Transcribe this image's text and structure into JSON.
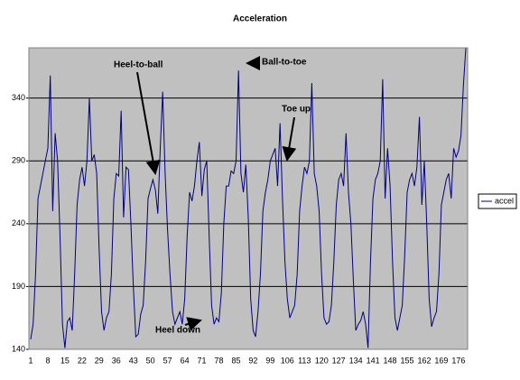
{
  "chart_data": {
    "type": "line",
    "title": "Acceleration",
    "categories": [
      1,
      null,
      null,
      null,
      null,
      null,
      null,
      8,
      null,
      null,
      null,
      null,
      null,
      null,
      15,
      null,
      null,
      null,
      null,
      null,
      null,
      22,
      null,
      null,
      null,
      null,
      null,
      null,
      29,
      null,
      null,
      null,
      null,
      null,
      null,
      36,
      null,
      null,
      null,
      null,
      null,
      null,
      43,
      null,
      null,
      null,
      null,
      null,
      null,
      50,
      null,
      null,
      null,
      null,
      null,
      null,
      57,
      null,
      null,
      null,
      null,
      null,
      null,
      64,
      null,
      null,
      null,
      null,
      null,
      null,
      71,
      null,
      null,
      null,
      null,
      null,
      null,
      78,
      null,
      null,
      null,
      null,
      null,
      null,
      85,
      null,
      null,
      null,
      null,
      null,
      null,
      92,
      null,
      null,
      null,
      null,
      null,
      null,
      99,
      null,
      null,
      null,
      null,
      null,
      null,
      106,
      null,
      null,
      null,
      null,
      null,
      null,
      113,
      null,
      null,
      null,
      null,
      null,
      null,
      120,
      null,
      null,
      null,
      null,
      null,
      null,
      127,
      null,
      null,
      null,
      null,
      null,
      null,
      134,
      null,
      null,
      null,
      null,
      null,
      null,
      141,
      null,
      null,
      null,
      null,
      null,
      null,
      148,
      null,
      null,
      null,
      null,
      null,
      null,
      155,
      null,
      null,
      null,
      null,
      null,
      null,
      162,
      null,
      null,
      null,
      null,
      null,
      null,
      169,
      null,
      null,
      null,
      null,
      null,
      null,
      176,
      null,
      null,
      null
    ],
    "series": [
      {
        "name": "accel",
        "color": "#000080",
        "values": [
          148,
          160,
          200,
          260,
          270,
          280,
          290,
          300,
          358,
          250,
          312,
          290,
          230,
          160,
          141,
          162,
          165,
          155,
          200,
          255,
          275,
          285,
          270,
          290,
          340,
          290,
          295,
          280,
          220,
          170,
          155,
          165,
          170,
          200,
          260,
          280,
          278,
          330,
          245,
          285,
          283,
          240,
          190,
          150,
          152,
          168,
          175,
          210,
          260,
          268,
          275,
          267,
          248,
          300,
          345,
          280,
          235,
          200,
          170,
          160,
          165,
          170,
          160,
          180,
          230,
          265,
          258,
          270,
          290,
          305,
          262,
          283,
          290,
          230,
          175,
          160,
          165,
          162,
          185,
          240,
          270,
          270,
          282,
          280,
          290,
          362,
          280,
          265,
          287,
          245,
          180,
          155,
          150,
          170,
          200,
          250,
          265,
          275,
          290,
          295,
          300,
          270,
          320,
          260,
          210,
          180,
          165,
          170,
          175,
          200,
          250,
          270,
          285,
          280,
          290,
          352,
          280,
          270,
          250,
          200,
          165,
          160,
          162,
          175,
          210,
          255,
          275,
          280,
          270,
          312,
          265,
          240,
          195,
          155,
          160,
          163,
          170,
          160,
          141,
          210,
          260,
          275,
          280,
          290,
          355,
          260,
          300,
          270,
          210,
          165,
          155,
          165,
          175,
          215,
          265,
          275,
          280,
          270,
          285,
          325,
          255,
          290,
          240,
          180,
          158,
          165,
          170,
          200,
          255,
          265,
          275,
          280,
          260,
          300,
          293,
          298,
          310,
          350,
          380
        ]
      }
    ],
    "ylim": [
      140,
      380
    ],
    "yticks": [
      140,
      190,
      240,
      290,
      340
    ],
    "grid": true,
    "legend": "right",
    "annotations": [
      "Heel-to-ball",
      "Ball-to-toe",
      "Toe up",
      "Heel down"
    ]
  }
}
